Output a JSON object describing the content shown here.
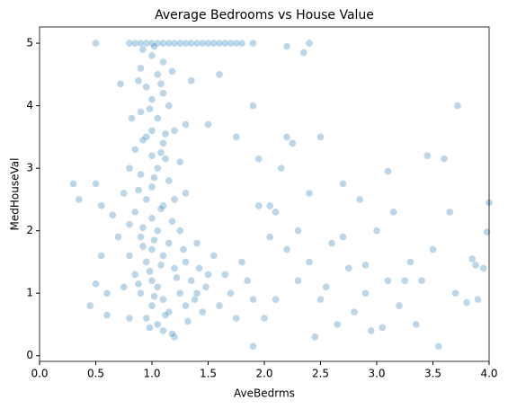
{
  "chart_data": {
    "type": "scatter",
    "title": "Average Bedrooms vs House Value",
    "x_label": "AveBedrms",
    "y_label": "MedHouseVal",
    "color": "#1f77b4",
    "xlim": [
      0,
      4
    ],
    "ylim": [
      -0.09,
      5.26
    ],
    "xticks": [
      {
        "value": 0,
        "label": "0.0"
      },
      0.5,
      {
        "value": 1,
        "label": "1.0"
      },
      1.5,
      {
        "value": 2,
        "label": "2.0"
      },
      2.5,
      {
        "value": 3,
        "label": "3.0"
      },
      3.5,
      {
        "value": 4,
        "label": "4.0"
      }
    ],
    "yticks": [
      0,
      1,
      2,
      3,
      4,
      5
    ],
    "grid": false,
    "x": [
      0.8,
      0.85,
      0.9,
      0.95,
      1.0,
      1.05,
      1.1,
      1.15,
      1.2,
      1.25,
      1.3,
      1.35,
      1.4,
      1.45,
      1.5,
      1.55,
      1.6,
      1.7,
      1.75,
      1.8,
      1.9,
      0.5,
      2.4,
      1.65,
      0.9,
      1.0,
      1.05,
      1.1,
      0.95,
      1.0,
      1.1,
      1.15,
      0.9,
      1.05,
      1.0,
      0.95,
      1.1,
      1.2,
      0.85,
      1.0,
      1.05,
      0.9,
      1.15,
      1.0,
      0.95,
      1.1,
      1.2,
      0.85,
      1.0,
      1.05,
      0.9,
      1.15,
      1.0,
      1.1,
      0.95,
      1.2,
      0.85,
      1.0,
      1.05,
      0.9,
      1.1,
      1.0,
      1.15,
      0.95,
      1.05,
      1.1,
      1.2,
      0.8,
      1.25,
      1.3,
      1.35,
      1.3,
      1.25,
      1.3,
      1.25,
      1.3,
      1.35,
      1.4,
      1.45,
      1.4,
      1.5,
      0.8,
      0.75,
      0.8,
      0.75,
      0.8,
      0.82,
      0.88,
      0.92,
      1.02,
      1.08,
      1.12,
      1.18,
      1.22,
      0.98,
      1.02,
      1.08,
      0.92,
      0.88,
      1.12,
      1.18,
      0.98,
      1.02,
      1.08,
      0.92,
      0.88,
      1.12,
      1.18,
      0.98,
      1.02,
      1.08,
      0.92,
      1.28,
      1.32,
      1.38,
      1.42,
      1.48,
      1.55,
      1.6,
      1.65,
      1.7,
      1.75,
      1.8,
      1.85,
      1.9,
      0.3,
      0.35,
      0.5,
      0.5,
      0.55,
      0.6,
      0.65,
      0.7,
      0.6,
      0.45,
      0.72,
      0.55,
      1.6,
      1.5,
      1.75,
      1.95,
      1.9,
      2.2,
      2.25,
      2.15,
      2.4,
      2.5,
      2.1,
      2.05,
      2.2,
      2.3,
      2.4,
      2.5,
      2.6,
      2.7,
      2.75,
      2.85,
      2.9,
      2.95,
      3.0,
      3.1,
      3.15,
      3.2,
      3.3,
      3.35,
      3.45,
      3.5,
      3.55,
      3.6,
      3.65,
      3.7,
      3.72,
      3.85,
      3.9,
      3.95,
      4.0,
      3.98,
      2.2,
      2.35,
      2.45,
      1.9,
      2.0,
      2.1,
      2.3,
      2.8,
      3.05,
      3.4,
      2.55,
      2.65,
      1.95,
      2.05,
      2.7,
      2.9,
      3.1,
      3.25,
      3.8,
      3.88
    ],
    "values": [
      5,
      5,
      5,
      5,
      5,
      5,
      5,
      5,
      5,
      5,
      5,
      5,
      5,
      5,
      5,
      5,
      5,
      5,
      5,
      5,
      5,
      5,
      5,
      5,
      4.6,
      4.8,
      4.5,
      4.7,
      4.3,
      4.1,
      4.2,
      4.0,
      3.9,
      3.8,
      3.6,
      3.5,
      3.4,
      3.6,
      3.3,
      3.2,
      3.0,
      2.9,
      2.8,
      2.7,
      2.5,
      2.4,
      2.5,
      2.3,
      2.2,
      2.0,
      1.9,
      1.8,
      1.7,
      1.6,
      1.5,
      1.4,
      1.3,
      1.2,
      1.1,
      1.0,
      0.9,
      0.8,
      0.7,
      0.6,
      0.5,
      0.4,
      0.3,
      0.6,
      1.0,
      0.8,
      1.2,
      1.5,
      2.0,
      2.6,
      3.1,
      3.7,
      4.4,
      1.0,
      0.7,
      1.8,
      1.3,
      1.6,
      1.1,
      2.1,
      2.6,
      3.0,
      3.8,
      4.4,
      4.9,
      4.95,
      4.35,
      3.15,
      2.15,
      1.25,
      0.45,
      0.95,
      1.45,
      1.75,
      2.65,
      3.55,
      4.55,
      3.95,
      2.85,
      2.35,
      2.05,
      1.15,
      0.65,
      0.35,
      1.35,
      1.85,
      3.25,
      3.45,
      1.7,
      0.55,
      0.9,
      1.4,
      1.1,
      1.6,
      0.8,
      1.3,
      1.0,
      0.6,
      1.5,
      1.2,
      0.9,
      2.75,
      2.5,
      2.75,
      1.15,
      1.6,
      0.65,
      2.25,
      1.9,
      1.0,
      0.8,
      4.35,
      2.4,
      4.5,
      3.7,
      3.5,
      3.15,
      4.0,
      3.5,
      3.4,
      3.0,
      2.6,
      3.5,
      2.3,
      1.9,
      1.7,
      1.2,
      1.5,
      0.9,
      1.8,
      2.75,
      1.4,
      2.5,
      1.0,
      0.4,
      2.0,
      1.2,
      2.3,
      0.8,
      1.5,
      0.5,
      3.2,
      1.7,
      0.15,
      3.15,
      2.3,
      1.0,
      4.0,
      1.55,
      0.9,
      1.4,
      2.45,
      1.98,
      4.95,
      4.85,
      0.3,
      0.15,
      0.6,
      0.9,
      2.0,
      0.7,
      0.45,
      1.2,
      1.1,
      0.5,
      2.4,
      2.4,
      1.9,
      1.45,
      2.95,
      1.2,
      0.85,
      1.45
    ]
  }
}
